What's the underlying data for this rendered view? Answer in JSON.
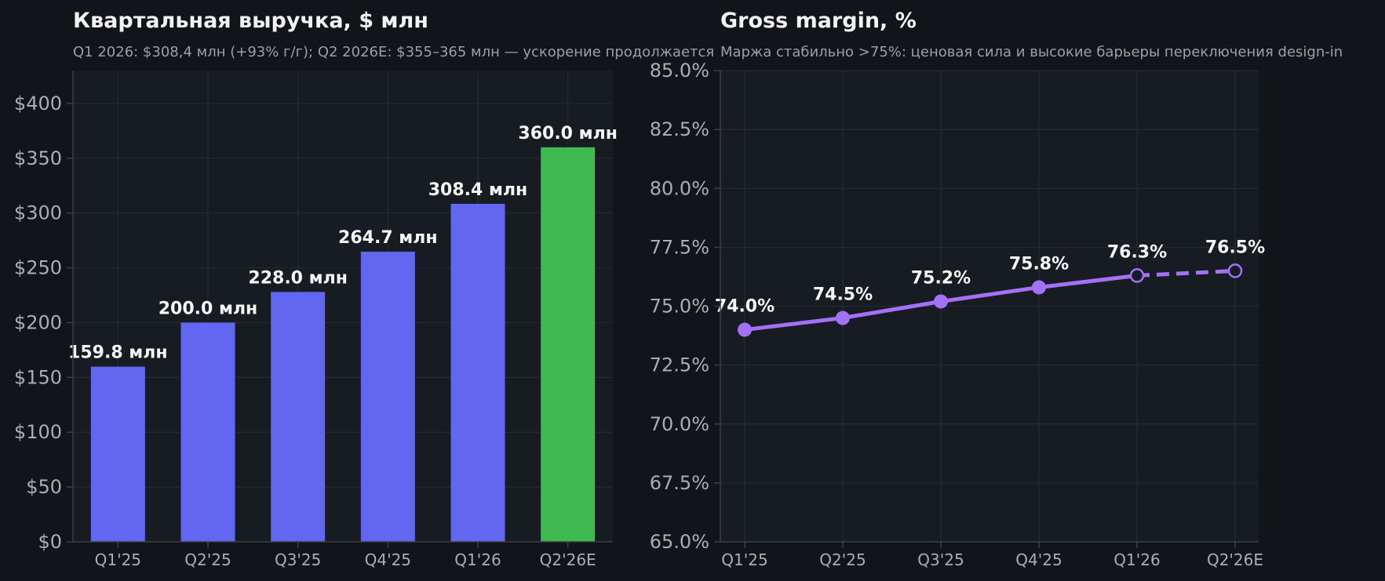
{
  "chart_data": [
    {
      "type": "bar",
      "title": "Квартальная выручка, $ млн",
      "subtitle": "Q1 2026: $308,4 млн (+93% г/г); Q2 2026E: $355–365 млн — ускорение продолжается",
      "categories": [
        "Q1'25",
        "Q2'25",
        "Q3'25",
        "Q4'25",
        "Q1'26",
        "Q2'26E"
      ],
      "values": [
        159.8,
        200.0,
        228.0,
        264.7,
        308.4,
        360.0
      ],
      "data_labels": [
        "159.8 млн",
        "200.0 млн",
        "228.0 млн",
        "264.7 млн",
        "308.4 млн",
        "360.0 млн"
      ],
      "ylim": [
        0,
        430
      ],
      "yticks": [
        0,
        50,
        100,
        150,
        200,
        250,
        300,
        350,
        400
      ],
      "ytick_labels": [
        "$0",
        "$50",
        "$100",
        "$150",
        "$200",
        "$250",
        "$300",
        "$350",
        "$400"
      ],
      "colors": [
        "#6366f1",
        "#6366f1",
        "#6366f1",
        "#6366f1",
        "#6366f1",
        "#3fba50"
      ],
      "grid": true
    },
    {
      "type": "line",
      "title": "Gross margin, %",
      "subtitle": "Маржа стабильно >75%: ценовая сила и высокие барьеры переключения design-in",
      "categories": [
        "Q1'25",
        "Q2'25",
        "Q3'25",
        "Q4'25",
        "Q1'26",
        "Q2'26E"
      ],
      "values": [
        74.0,
        74.5,
        75.2,
        75.8,
        76.3,
        76.5
      ],
      "data_labels": [
        "74.0%",
        "74.5%",
        "75.2%",
        "75.8%",
        "76.3%",
        "76.5%"
      ],
      "marker_filled": [
        true,
        true,
        true,
        true,
        false,
        false
      ],
      "dashed_from_index": 4,
      "ylim": [
        65,
        85
      ],
      "yticks": [
        65,
        67.5,
        70,
        72.5,
        75,
        77.5,
        80,
        82.5,
        85
      ],
      "ytick_labels": [
        "65.0%",
        "67.5%",
        "70.0%",
        "72.5%",
        "75.0%",
        "77.5%",
        "80.0%",
        "82.5%",
        "85.0%"
      ],
      "color": "#a371f7",
      "grid": true
    }
  ],
  "colors": {
    "background": "#111519",
    "panel": "#171b22",
    "bar_actual": "#6366f1",
    "bar_estimate": "#3fba50",
    "line": "#a371f7"
  }
}
